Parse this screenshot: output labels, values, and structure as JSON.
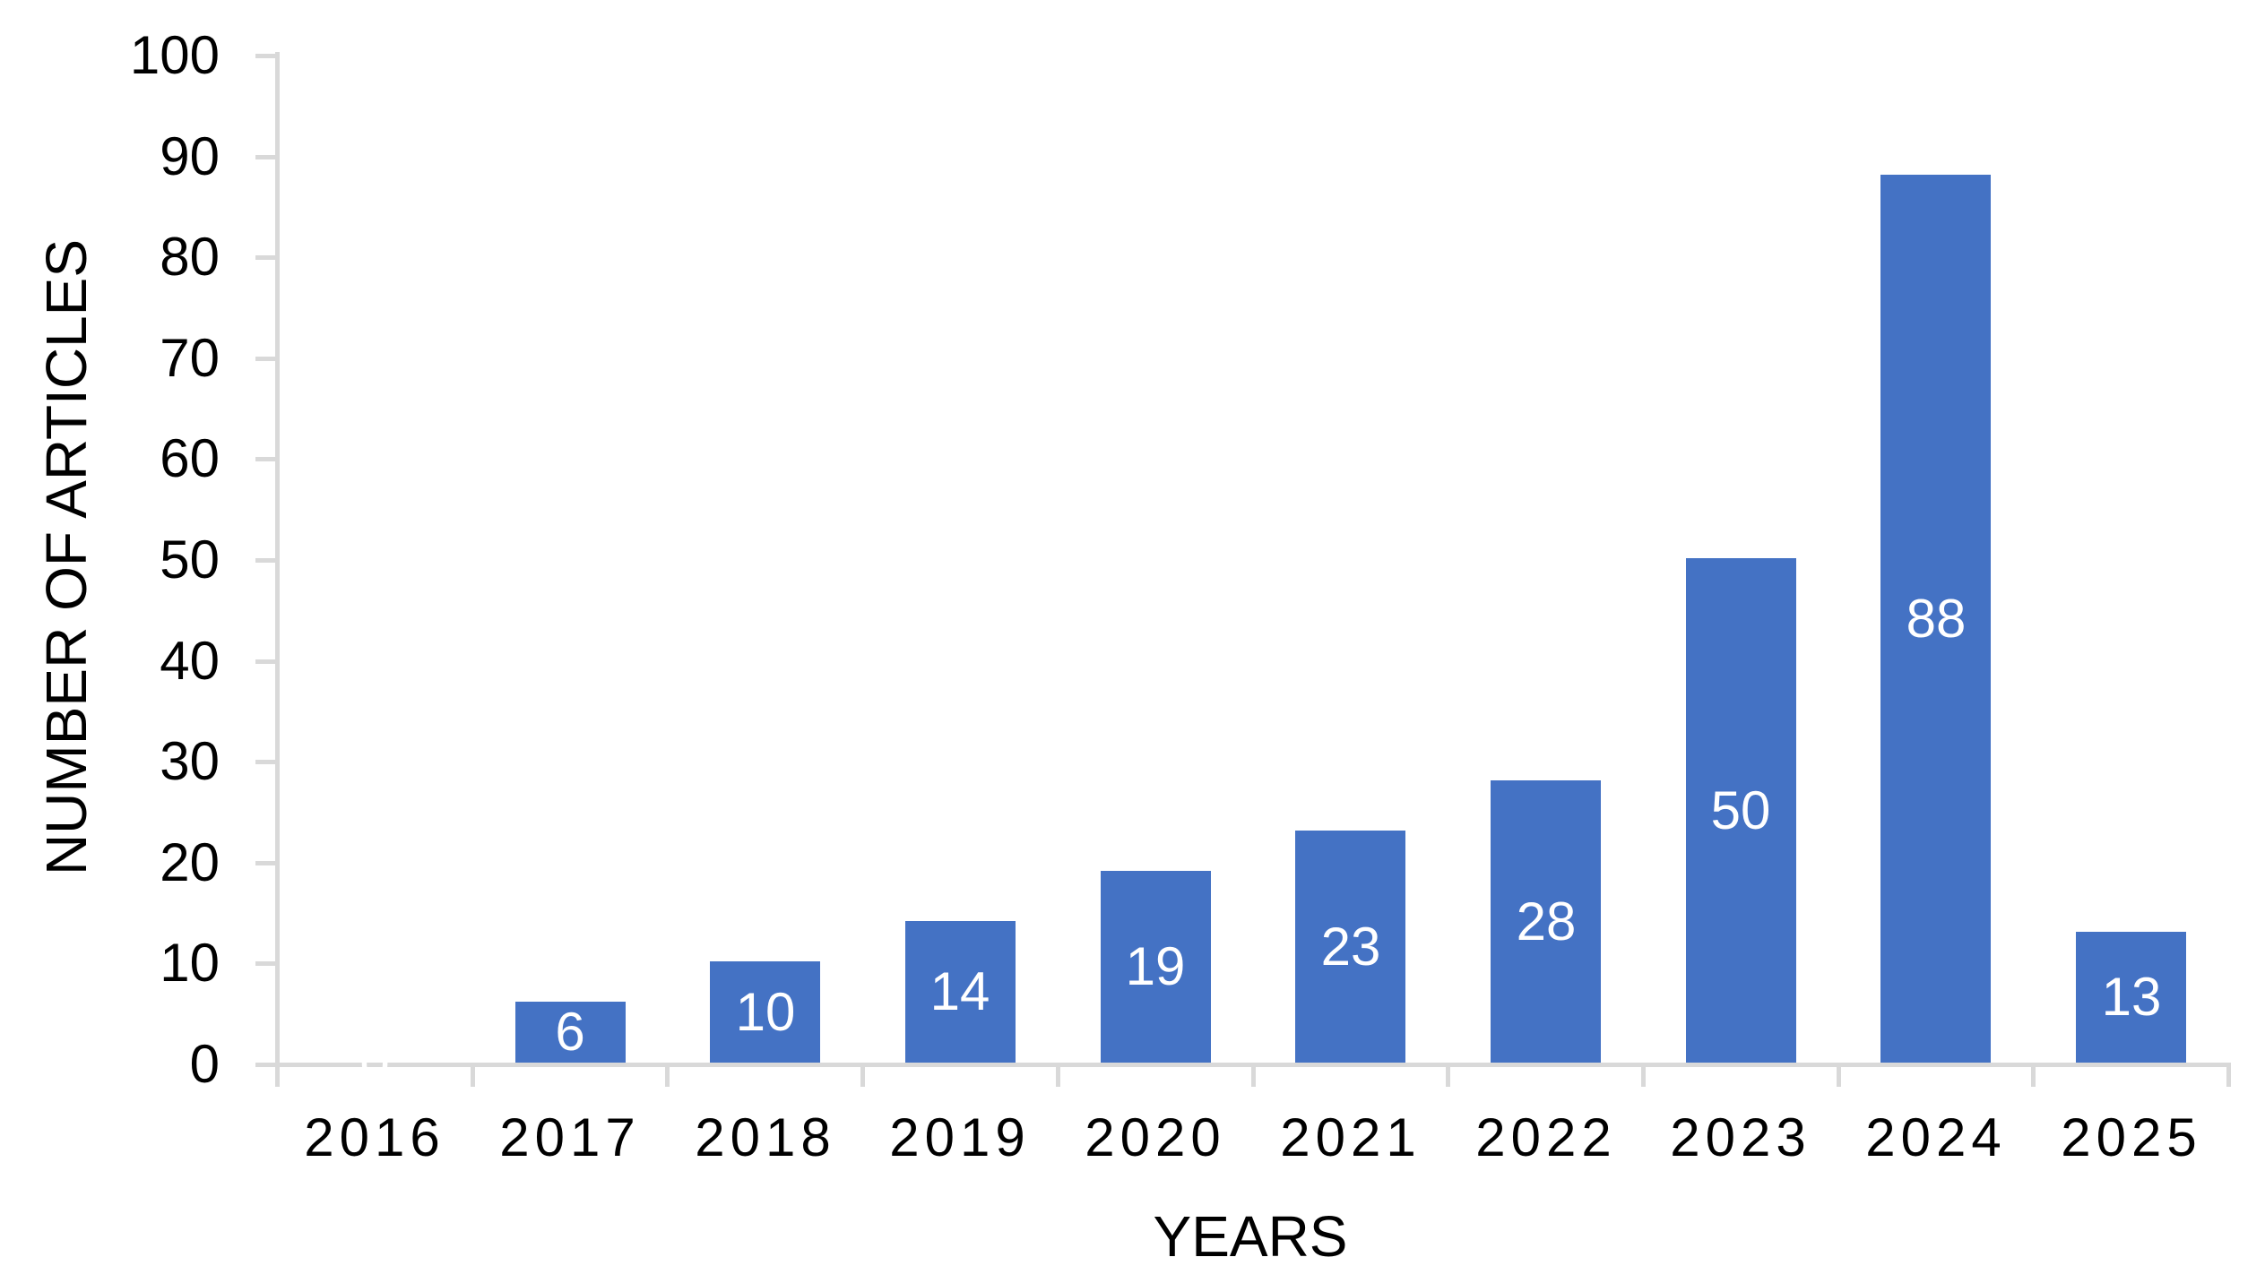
{
  "chart_data": {
    "type": "bar",
    "title": "",
    "xlabel": "YEARS",
    "ylabel": "NUMBER OF ARTICLES",
    "categories": [
      "2016",
      "2017",
      "2018",
      "2019",
      "2020",
      "2021",
      "2022",
      "2023",
      "2024",
      "2025"
    ],
    "values": [
      0,
      6,
      10,
      14,
      19,
      23,
      28,
      50,
      88,
      13
    ],
    "data_labels": [
      "0",
      "6",
      "10",
      "14",
      "19",
      "23",
      "28",
      "50",
      "88",
      "13"
    ],
    "y_ticks": [
      0,
      10,
      20,
      30,
      40,
      50,
      60,
      70,
      80,
      90,
      100
    ],
    "ylim": [
      0,
      100
    ],
    "grid": "off",
    "legend": "none",
    "colors": {
      "bar": "#4472C4",
      "axis": "#D9D9D9",
      "text": "#000000",
      "data_label": "#FFFFFF",
      "background": "#FFFFFF"
    }
  }
}
